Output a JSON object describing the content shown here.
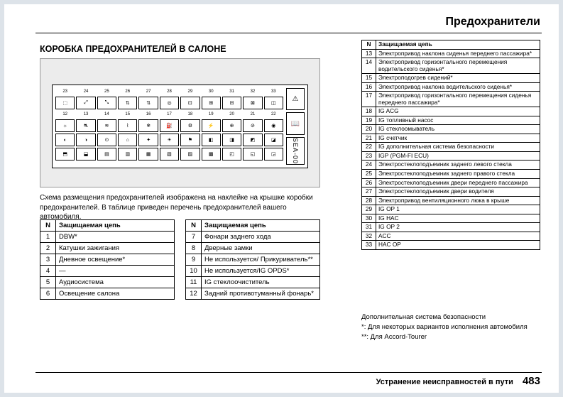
{
  "header": {
    "title": "Предохранители"
  },
  "subtitle": "КОРОБКА ПРЕДОХРАНИТЕЛЕЙ В САЛОНЕ",
  "diagram": {
    "row1_nums": [
      "23",
      "24",
      "25",
      "26",
      "27",
      "28",
      "29",
      "30",
      "31",
      "32",
      "33"
    ],
    "row2_nums": [
      "12",
      "13",
      "14",
      "15",
      "16",
      "17",
      "18",
      "19",
      "20",
      "21",
      "22"
    ],
    "side_label": "SEA-00",
    "triangle": "⚠",
    "book": "📖"
  },
  "caption": "Схема размещения предохранителей изображена на наклейке на крышке коробки предохранителей. В таблице приведен перечень предохранителей вашего автомобиля.",
  "table_header_n": "N",
  "table_header_desc": "Защищаемая цепь",
  "left_table1": [
    {
      "n": "1",
      "d": "DBW*"
    },
    {
      "n": "2",
      "d": "Катушки зажигания"
    },
    {
      "n": "3",
      "d": "Дневное освещение*"
    },
    {
      "n": "4",
      "d": "—"
    },
    {
      "n": "5",
      "d": "Аудиосистема"
    },
    {
      "n": "6",
      "d": "Освещение салона"
    }
  ],
  "left_table2": [
    {
      "n": "7",
      "d": "Фонари заднего хода"
    },
    {
      "n": "8",
      "d": "Дверные замки"
    },
    {
      "n": "9",
      "d": "Не используется/ Прикуриватель**"
    },
    {
      "n": "10",
      "d": "Не используется/IG OPDS*"
    },
    {
      "n": "11",
      "d": "IG стеклоочиститель"
    },
    {
      "n": "12",
      "d": "Задний противотуманный фонарь*"
    }
  ],
  "right_table": [
    {
      "n": "13",
      "d": "Электропривод наклона сиденья переднего пассажира*"
    },
    {
      "n": "14",
      "d": "Электропривод горизонтального перемещения водительского сиденья*"
    },
    {
      "n": "15",
      "d": "Электроподогрев сидений*"
    },
    {
      "n": "16",
      "d": "Электропривод наклона водительского сиденья*"
    },
    {
      "n": "17",
      "d": "Электропривод горизонтального перемещения сиденья переднего пассажира*"
    },
    {
      "n": "18",
      "d": "IG ACG"
    },
    {
      "n": "19",
      "d": "IG топливный насос"
    },
    {
      "n": "20",
      "d": "IG стеклоомыватель"
    },
    {
      "n": "21",
      "d": "IG счетчик"
    },
    {
      "n": "22",
      "d": "IG дополнительная система безопасности"
    },
    {
      "n": "23",
      "d": "IGP (PGM-FI ECU)"
    },
    {
      "n": "24",
      "d": "Электростеклоподъемник заднего левого стекла"
    },
    {
      "n": "25",
      "d": "Электростеклоподъемник заднего правого стекла"
    },
    {
      "n": "26",
      "d": "Электростеклоподъемник двери переднего пассажира"
    },
    {
      "n": "27",
      "d": "Электростеклоподъемник двери водителя"
    },
    {
      "n": "28",
      "d": "Электропривод вентиляционного люка в крыше"
    },
    {
      "n": "29",
      "d": "IG OP 1"
    },
    {
      "n": "30",
      "d": "IG HAC"
    },
    {
      "n": "31",
      "d": "IG OP 2"
    },
    {
      "n": "32",
      "d": "ACC"
    },
    {
      "n": "33",
      "d": "HAC OP"
    }
  ],
  "notes": {
    "line1": "Дополнительная система безопасности",
    "line2": "*: Для некоторых вариантов исполнения автомобиля",
    "line3": "**: Для Accord-Tourer"
  },
  "footer": {
    "text": "Устранение неисправностей в пути",
    "page": "483"
  }
}
